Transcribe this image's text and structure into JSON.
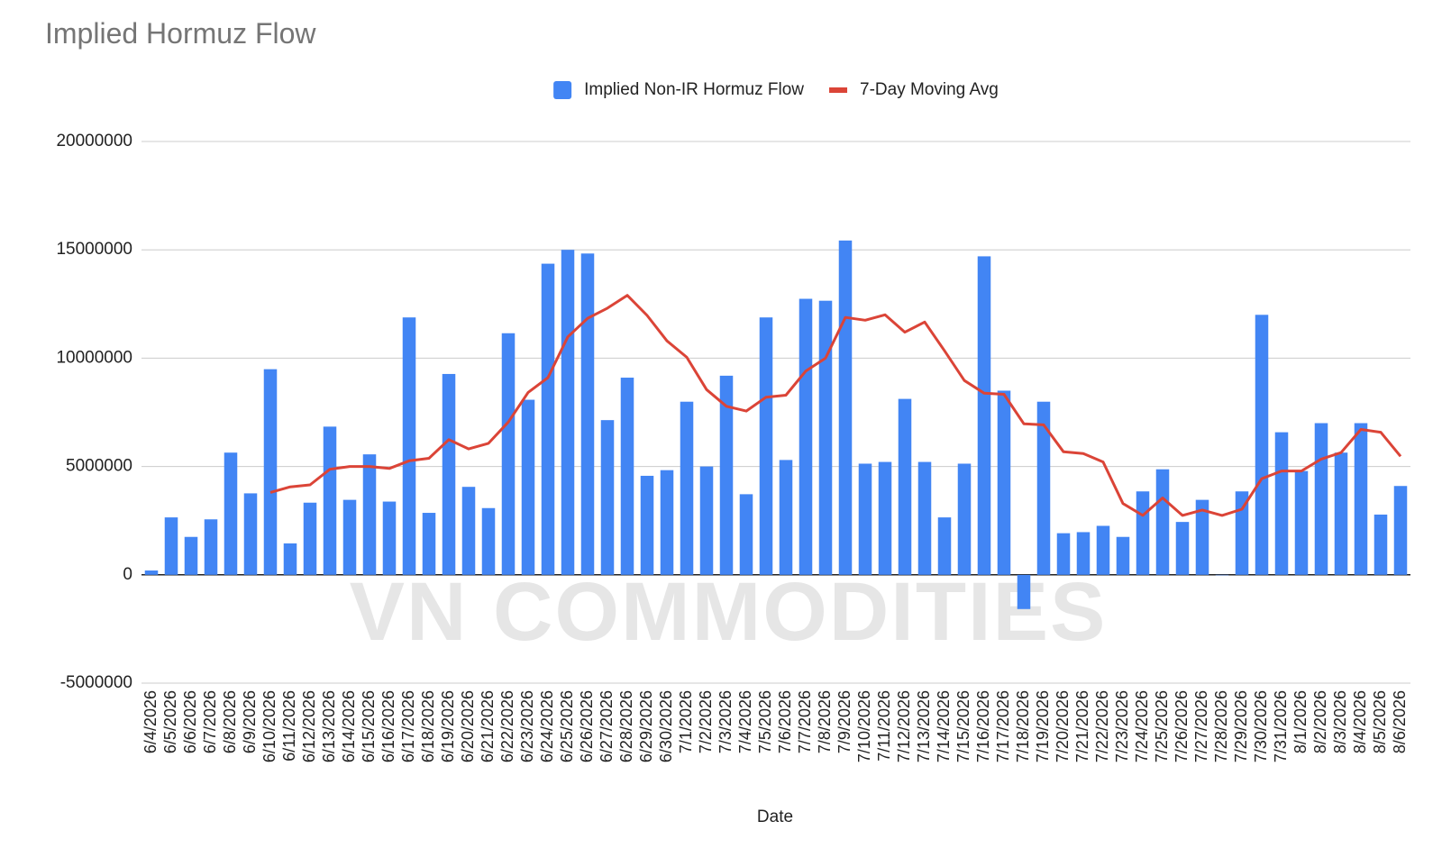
{
  "chart_data": {
    "type": "combo",
    "title": "Implied Hormuz Flow",
    "x_label": "Date",
    "watermark": "VN COMMODITIES",
    "categories": [
      "6/4/2026",
      "6/5/2026",
      "6/6/2026",
      "6/7/2026",
      "6/8/2026",
      "6/9/2026",
      "6/10/2026",
      "6/11/2026",
      "6/12/2026",
      "6/13/2026",
      "6/14/2026",
      "6/15/2026",
      "6/16/2026",
      "6/17/2026",
      "6/18/2026",
      "6/19/2026",
      "6/20/2026",
      "6/21/2026",
      "6/22/2026",
      "6/23/2026",
      "6/24/2026",
      "6/25/2026",
      "6/26/2026",
      "6/27/2026",
      "6/28/2026",
      "6/29/2026",
      "6/30/2026",
      "7/1/2026",
      "7/2/2026",
      "7/3/2026",
      "7/4/2026",
      "7/5/2026",
      "7/6/2026",
      "7/7/2026",
      "7/8/2026",
      "7/9/2026",
      "7/10/2026",
      "7/11/2026",
      "7/12/2026",
      "7/13/2026",
      "7/14/2026",
      "7/15/2026",
      "7/16/2026",
      "7/17/2026",
      "7/18/2026",
      "7/19/2026",
      "7/20/2026",
      "7/21/2026",
      "7/22/2026",
      "7/23/2026",
      "7/24/2026",
      "7/25/2026",
      "7/26/2026",
      "7/27/2026",
      "7/28/2026",
      "7/29/2026",
      "7/30/2026",
      "7/31/2026",
      "8/1/2026",
      "8/2/2026",
      "8/3/2026",
      "8/4/2026",
      "8/5/2026",
      "8/6/2026"
    ],
    "series": [
      {
        "name": "Implied Non-IR Hormuz Flow",
        "type": "bar",
        "color": "#4285f4",
        "values": [
          200000,
          2650000,
          1750000,
          2560000,
          5640000,
          3760000,
          9490000,
          1450000,
          3330000,
          6840000,
          3460000,
          5560000,
          3380000,
          11880000,
          2860000,
          9270000,
          4060000,
          3080000,
          11150000,
          8080000,
          14360000,
          15000000,
          14830000,
          7140000,
          9100000,
          4570000,
          4830000,
          7990000,
          5000000,
          9190000,
          3720000,
          11880000,
          5300000,
          12740000,
          12650000,
          15430000,
          5130000,
          5210000,
          8120000,
          5210000,
          2650000,
          5130000,
          14700000,
          8500000,
          -1580000,
          7990000,
          1920000,
          1970000,
          2260000,
          1750000,
          3850000,
          4870000,
          2440000,
          3460000,
          0,
          3850000,
          12000000,
          6580000,
          4790000,
          7000000,
          5640000,
          7000000,
          2780000,
          4100000
        ]
      },
      {
        "name": "7-Day Moving Avg",
        "type": "line",
        "color": "#db4437",
        "values": [
          null,
          null,
          null,
          null,
          null,
          null,
          3800000,
          4060000,
          4150000,
          4870000,
          5000000,
          5000000,
          4910000,
          5260000,
          5380000,
          6240000,
          5810000,
          6070000,
          7050000,
          8420000,
          9100000,
          10980000,
          11840000,
          12310000,
          12900000,
          11970000,
          10800000,
          10040000,
          8550000,
          7780000,
          7560000,
          8200000,
          8290000,
          9400000,
          10000000,
          11880000,
          11750000,
          12000000,
          11200000,
          11670000,
          10340000,
          8970000,
          8380000,
          8330000,
          6970000,
          6920000,
          5680000,
          5600000,
          5210000,
          3290000,
          2740000,
          3550000,
          2740000,
          2990000,
          2740000,
          3030000,
          4440000,
          4790000,
          4790000,
          5340000,
          5640000,
          6710000,
          6580000,
          5470000
        ]
      }
    ],
    "ylim": [
      -5000000,
      20000000
    ],
    "yticks": [
      -5000000,
      0,
      5000000,
      10000000,
      15000000,
      20000000
    ],
    "grid": true,
    "legend": "top"
  }
}
